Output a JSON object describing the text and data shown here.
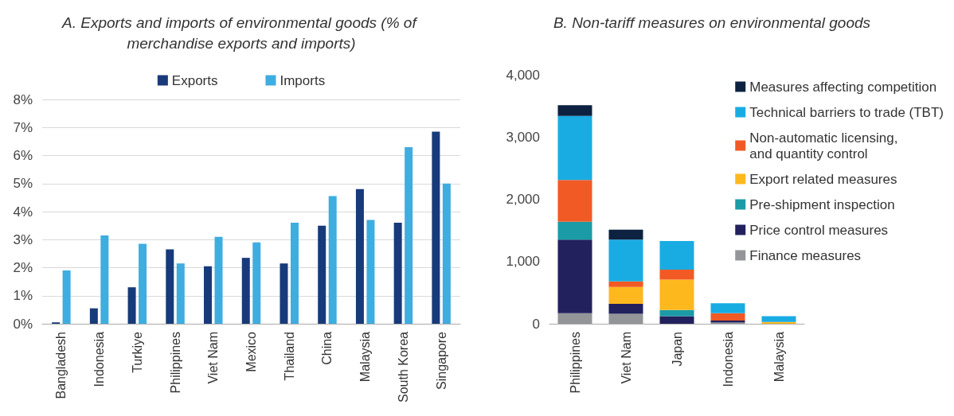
{
  "chart_data": [
    {
      "type": "bar",
      "title": "A. Exports and imports of environmental goods (% of merchandise exports and imports)",
      "categories": [
        "Bangladesh",
        "Indonesia",
        "Turkiye",
        "Philippines",
        "Viet Nam",
        "Mexico",
        "Thailand",
        "China",
        "Malaysia",
        "South Korea",
        "Singapore"
      ],
      "series": [
        {
          "name": "Exports",
          "color": "#173a7a",
          "values": [
            0.05,
            0.55,
            1.3,
            2.65,
            2.05,
            2.35,
            2.15,
            3.5,
            4.8,
            3.6,
            6.85
          ]
        },
        {
          "name": "Imports",
          "color": "#3eade0",
          "values": [
            1.9,
            3.15,
            2.85,
            2.15,
            3.1,
            2.9,
            3.6,
            4.55,
            3.7,
            6.3,
            5.0
          ]
        }
      ],
      "ylim": [
        0,
        8
      ],
      "yticks": [
        {
          "value": 0,
          "label": "0%"
        },
        {
          "value": 1,
          "label": "1%"
        },
        {
          "value": 2,
          "label": "2%"
        },
        {
          "value": 3,
          "label": "3%"
        },
        {
          "value": 4,
          "label": "4%"
        },
        {
          "value": 5,
          "label": "5%"
        },
        {
          "value": 6,
          "label": "6%"
        },
        {
          "value": 7,
          "label": "7%"
        },
        {
          "value": 8,
          "label": "8%"
        }
      ],
      "grid": "y",
      "legend": "top"
    },
    {
      "type": "bar",
      "title": "B. Non-tariff measures on environmental goods",
      "categories": [
        "Philippines",
        "Viet Nam",
        "Japan",
        "Indonesia",
        "Malaysia"
      ],
      "stacked": true,
      "series": [
        {
          "name": "Finance measures",
          "color": "#939598",
          "values": [
            170,
            160,
            0,
            20,
            0
          ]
        },
        {
          "name": "Price control measures",
          "color": "#22215e",
          "values": [
            1180,
            160,
            120,
            30,
            0
          ]
        },
        {
          "name": "Pre-shipment inspection",
          "color": "#1a9ba6",
          "values": [
            290,
            0,
            100,
            0,
            0
          ]
        },
        {
          "name": "Export related measures",
          "color": "#fdb81e",
          "values": [
            0,
            270,
            490,
            0,
            30
          ]
        },
        {
          "name": "Non-automatic licensing,\nand quantity control",
          "color": "#f15a24",
          "values": [
            670,
            90,
            160,
            120,
            0
          ]
        },
        {
          "name": "Technical barriers to trade (TBT)",
          "color": "#19ace3",
          "values": [
            1030,
            670,
            460,
            160,
            90
          ]
        },
        {
          "name": "Measures affecting competition",
          "color": "#0d2240",
          "values": [
            170,
            160,
            0,
            0,
            0
          ]
        }
      ],
      "ylim": [
        0,
        4000
      ],
      "yticks": [
        0,
        {
          "value": 1000,
          "label": "1,000"
        },
        {
          "value": 2000,
          "label": "2,000"
        },
        {
          "value": 3000,
          "label": "3,000"
        },
        {
          "value": 4000,
          "label": "4,000"
        }
      ],
      "grid": false,
      "legend": "top right"
    }
  ]
}
